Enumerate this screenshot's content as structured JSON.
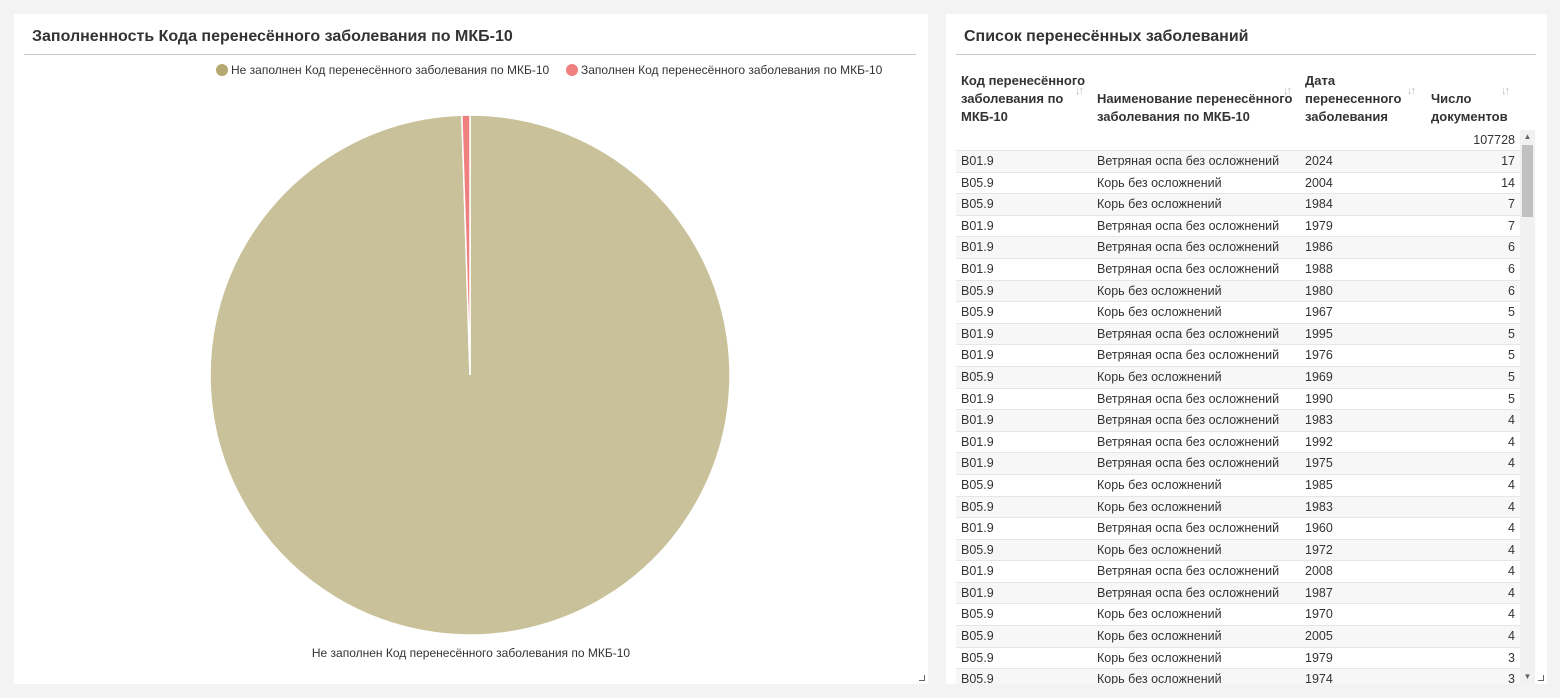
{
  "left_panel": {
    "title": "Заполненность Кода перенесённого заболевания по МКБ-10",
    "pie_label": "Не заполнен Код перенесённого заболевания по МКБ-10"
  },
  "chart_data": {
    "type": "pie",
    "title": "Заполненность Кода перенесённого заболевания по МКБ-10",
    "legend_position": "top",
    "slices": [
      {
        "label": "Не заполнен Код перенесённого заболевания по МКБ-10",
        "value": 99.5,
        "color": "#c9c19a",
        "legend_color": "#b5a870"
      },
      {
        "label": "Заполнен Код перенесённого заболевания по МКБ-10",
        "value": 0.5,
        "color": "#f08080",
        "legend_color": "#f08080"
      }
    ]
  },
  "right_panel": {
    "title": "Список перенесённых заболеваний",
    "columns": {
      "code": [
        "Код перенесённого",
        "заболевания по",
        "МКБ-10"
      ],
      "name": [
        "Наименование перенесённого",
        "заболевания по МКБ-10"
      ],
      "date": [
        "Дата",
        "перенесенного",
        "заболевания"
      ],
      "count": [
        "Число",
        "документов"
      ]
    },
    "sort_icon": "sort-icon",
    "total": "107728",
    "rows": [
      [
        "B01.9",
        "Ветряная оспа без осложнений",
        "2024",
        "17"
      ],
      [
        "B05.9",
        "Корь без осложнений",
        "2004",
        "14"
      ],
      [
        "B05.9",
        "Корь без осложнений",
        "1984",
        "7"
      ],
      [
        "B01.9",
        "Ветряная оспа без осложнений",
        "1979",
        "7"
      ],
      [
        "B01.9",
        "Ветряная оспа без осложнений",
        "1986",
        "6"
      ],
      [
        "B01.9",
        "Ветряная оспа без осложнений",
        "1988",
        "6"
      ],
      [
        "B05.9",
        "Корь без осложнений",
        "1980",
        "6"
      ],
      [
        "B05.9",
        "Корь без осложнений",
        "1967",
        "5"
      ],
      [
        "B01.9",
        "Ветряная оспа без осложнений",
        "1995",
        "5"
      ],
      [
        "B01.9",
        "Ветряная оспа без осложнений",
        "1976",
        "5"
      ],
      [
        "B05.9",
        "Корь без осложнений",
        "1969",
        "5"
      ],
      [
        "B01.9",
        "Ветряная оспа без осложнений",
        "1990",
        "5"
      ],
      [
        "B01.9",
        "Ветряная оспа без осложнений",
        "1983",
        "4"
      ],
      [
        "B01.9",
        "Ветряная оспа без осложнений",
        "1992",
        "4"
      ],
      [
        "B01.9",
        "Ветряная оспа без осложнений",
        "1975",
        "4"
      ],
      [
        "B05.9",
        "Корь без осложнений",
        "1985",
        "4"
      ],
      [
        "B05.9",
        "Корь без осложнений",
        "1983",
        "4"
      ],
      [
        "B01.9",
        "Ветряная оспа без осложнений",
        "1960",
        "4"
      ],
      [
        "B05.9",
        "Корь без осложнений",
        "1972",
        "4"
      ],
      [
        "B01.9",
        "Ветряная оспа без осложнений",
        "2008",
        "4"
      ],
      [
        "B01.9",
        "Ветряная оспа без осложнений",
        "1987",
        "4"
      ],
      [
        "B05.9",
        "Корь без осложнений",
        "1970",
        "4"
      ],
      [
        "B05.9",
        "Корь без осложнений",
        "2005",
        "4"
      ],
      [
        "B05.9",
        "Корь без осложнений",
        "1979",
        "3"
      ],
      [
        "B05.9",
        "Корь без осложнений",
        "1974",
        "3"
      ]
    ]
  }
}
